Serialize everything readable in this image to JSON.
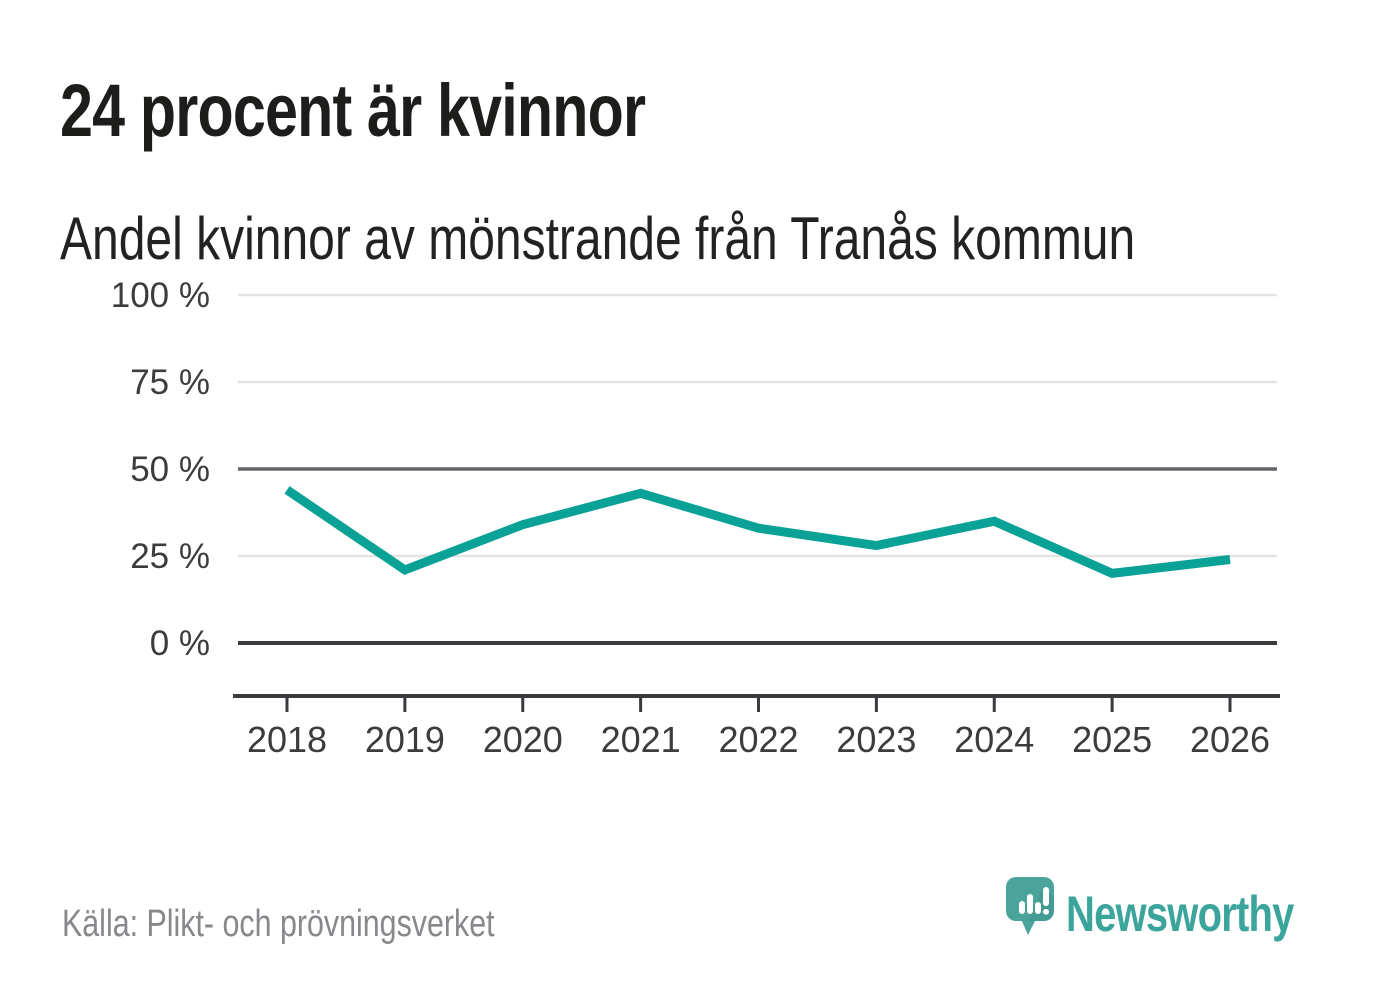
{
  "page": {
    "background": "#ffffff"
  },
  "header": {
    "title": "24 procent är kvinnor",
    "subtitle": "Andel kvinnor av mönstrande från Tranås kommun"
  },
  "chart_data": {
    "type": "line",
    "title": "24 procent är kvinnor",
    "subtitle": "Andel kvinnor av mönstrande från Tranås kommun",
    "x_labels": [
      "2018",
      "2019",
      "2020",
      "2021",
      "2022",
      "2023",
      "2024",
      "2025",
      "2026"
    ],
    "series": [
      {
        "name": "Andel kvinnor av mönstrande",
        "color": "#0aa296",
        "values": [
          44,
          21,
          34,
          43,
          33,
          28,
          35,
          20,
          24
        ]
      }
    ],
    "y_unit": "%",
    "ylim": [
      0,
      100
    ],
    "y_ticks": [
      {
        "value": 100,
        "label": "100 %"
      },
      {
        "value": 75,
        "label": "75 %"
      },
      {
        "value": 50,
        "label": "50 %"
      },
      {
        "value": 25,
        "label": "25 %"
      },
      {
        "value": 0,
        "label": "0 %"
      }
    ],
    "grid": "horizontal",
    "emphasized_gridlines": [
      50,
      0
    ],
    "legend": "none"
  },
  "footer": {
    "source": "Källa: Plikt- och prövningsverket",
    "brand": "Newsworthy",
    "logo_icon": "speech-bubble-bar-chart"
  },
  "colors": {
    "accent": "#0aa296",
    "grid_light": "#e3e3e3",
    "grid_mid": "#63636b",
    "axis_dark": "#3a3a3f",
    "tick_label": "#3c3c3c",
    "title_text": "#1d1d1b",
    "muted_text": "#87878c",
    "logo_teal": "#4aa49c",
    "logo_shadow": "#3f948d",
    "brand_text": "#3ba49b"
  }
}
